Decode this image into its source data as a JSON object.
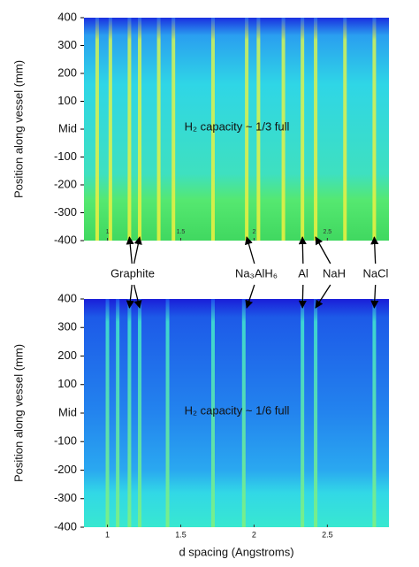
{
  "chart_data": [
    {
      "type": "heatmap",
      "note": "H₂ capacity ~ 1/3 full",
      "ylabel": "Position along vessel (mm)",
      "xlim": [
        0.84,
        2.92
      ],
      "xticks": [
        1.0,
        1.5,
        2.0,
        2.5
      ],
      "ylim": [
        -400,
        400
      ],
      "yticks": [
        400,
        300,
        200,
        100,
        {
          "value": 0,
          "label": "Mid"
        },
        -100,
        -200,
        -300,
        -400
      ],
      "peaks": [
        0.93,
        1.02,
        1.15,
        1.22,
        1.35,
        1.45,
        1.72,
        1.95,
        2.03,
        2.2,
        2.33,
        2.42,
        2.62,
        2.82
      ]
    },
    {
      "type": "heatmap",
      "note": "H₂ capacity ~ 1/6 full",
      "ylabel": "Position along vessel (mm)",
      "xlabel": "d spacing (Angstroms)",
      "xlim": [
        0.84,
        2.92
      ],
      "xticks": [
        1.0,
        1.5,
        2.0,
        2.5
      ],
      "ylim": [
        -400,
        400
      ],
      "yticks": [
        400,
        300,
        200,
        100,
        {
          "value": 0,
          "label": "Mid"
        },
        -100,
        -200,
        -300,
        -400
      ],
      "peaks": [
        1.0,
        1.07,
        1.15,
        1.22,
        1.41,
        1.72,
        1.93,
        2.33,
        2.42,
        2.82
      ]
    }
  ],
  "annotations": [
    {
      "text": "Graphite",
      "x": [
        1.15,
        1.22
      ]
    },
    {
      "text": "Na₃AlH₆",
      "x": [
        1.95
      ]
    },
    {
      "text": "Al",
      "x": [
        2.33
      ]
    },
    {
      "text": "NaH",
      "x": [
        2.42
      ]
    },
    {
      "text": "NaCl",
      "x": [
        2.82
      ]
    }
  ]
}
